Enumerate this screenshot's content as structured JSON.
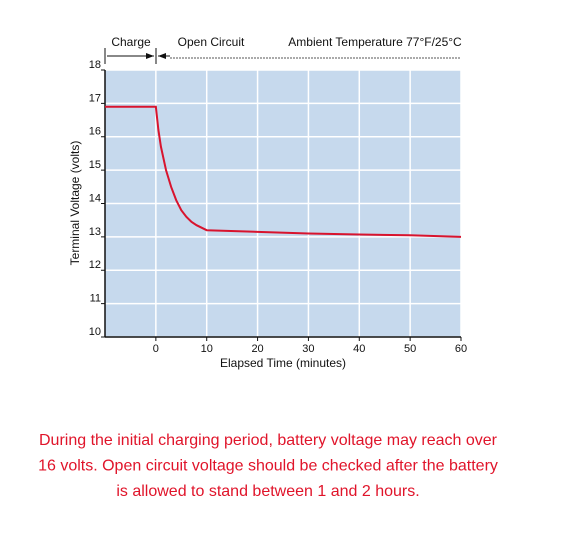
{
  "chart_data": {
    "type": "line",
    "x_label": "Elapsed Time (minutes)",
    "y_label": "Terminal Voltage (volts)",
    "annotations": [
      "Charge",
      "Open Circuit",
      "Ambient Temperature 77°F/25°C"
    ],
    "series": [
      {
        "color": "#d8142e",
        "x": [
          -10,
          0,
          0.5,
          1,
          2,
          3,
          4,
          5,
          6,
          7,
          8,
          10,
          20,
          30,
          40,
          50,
          60
        ],
        "values": [
          16.9,
          16.9,
          16.2,
          15.7,
          15.0,
          14.5,
          14.1,
          13.8,
          13.6,
          13.45,
          13.35,
          13.2,
          13.15,
          13.1,
          13.07,
          13.05,
          13.0
        ]
      }
    ],
    "xlim": [
      -10,
      60
    ],
    "xticks": [
      0,
      10,
      20,
      30,
      40,
      50,
      60
    ],
    "ylim": [
      10,
      18
    ],
    "yticks": [
      10,
      11,
      12,
      13,
      14,
      15,
      16,
      17,
      18
    ],
    "grid": true,
    "plot_color": "#c6d9ed",
    "caption": [
      "During the initial charging period, battery voltage may reach over",
      "16 volts. Open circuit voltage should be checked after the battery",
      "is allowed to stand between 1 and 2 hours."
    ],
    "caption_color": "#e0142a"
  }
}
